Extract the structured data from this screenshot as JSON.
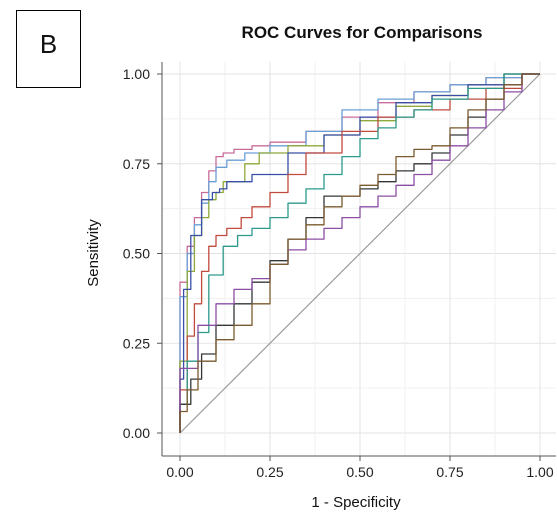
{
  "panel_label": "B",
  "chart_data": {
    "type": "line",
    "title": "ROC Curves for Comparisons",
    "xlabel": "1 - Specificity",
    "ylabel": "Sensitivity",
    "xlim": [
      0,
      1
    ],
    "ylim": [
      0,
      1
    ],
    "x_ticks": [
      "0.00",
      "0.25",
      "0.50",
      "0.75",
      "1.00"
    ],
    "y_ticks": [
      "0.00",
      "0.25",
      "0.50",
      "0.75",
      "1.00"
    ],
    "grid": true,
    "legend": "none",
    "reference_line": {
      "x": [
        0,
        1
      ],
      "y": [
        0,
        1
      ],
      "color": "#9a9a9a"
    },
    "series": [
      {
        "color": "#c86d9a",
        "x": [
          0,
          0.02,
          0.04,
          0.06,
          0.08,
          0.1,
          0.12,
          0.15,
          0.2,
          0.25,
          0.35,
          0.45,
          0.55,
          0.65,
          0.75,
          0.85,
          0.95,
          1.0
        ],
        "y": [
          0,
          0.42,
          0.52,
          0.6,
          0.67,
          0.73,
          0.77,
          0.78,
          0.79,
          0.8,
          0.81,
          0.84,
          0.88,
          0.92,
          0.95,
          0.97,
          0.99,
          1.0
        ]
      },
      {
        "color": "#6a9fd6",
        "x": [
          0,
          0.02,
          0.04,
          0.06,
          0.08,
          0.1,
          0.13,
          0.18,
          0.25,
          0.35,
          0.45,
          0.55,
          0.65,
          0.75,
          0.85,
          0.95,
          1.0
        ],
        "y": [
          0,
          0.38,
          0.5,
          0.58,
          0.64,
          0.7,
          0.74,
          0.76,
          0.78,
          0.8,
          0.84,
          0.9,
          0.93,
          0.95,
          0.97,
          0.99,
          1.0
        ]
      },
      {
        "color": "#8ea83a",
        "x": [
          0,
          0.02,
          0.04,
          0.06,
          0.08,
          0.1,
          0.12,
          0.18,
          0.22,
          0.3,
          0.4,
          0.5,
          0.6,
          0.7,
          0.8,
          0.9,
          1.0
        ],
        "y": [
          0,
          0.2,
          0.45,
          0.55,
          0.6,
          0.65,
          0.67,
          0.7,
          0.75,
          0.78,
          0.8,
          0.83,
          0.87,
          0.91,
          0.94,
          0.97,
          1.0
        ]
      },
      {
        "color": "#3a4fa8",
        "x": [
          0,
          0.01,
          0.03,
          0.06,
          0.09,
          0.11,
          0.13,
          0.2,
          0.3,
          0.4,
          0.5,
          0.6,
          0.7,
          0.8,
          0.9,
          1.0
        ],
        "y": [
          0,
          0.15,
          0.4,
          0.55,
          0.65,
          0.67,
          0.68,
          0.7,
          0.72,
          0.78,
          0.83,
          0.88,
          0.92,
          0.94,
          0.97,
          1.0
        ]
      },
      {
        "color": "#c14a3e",
        "x": [
          0,
          0.02,
          0.04,
          0.06,
          0.08,
          0.1,
          0.13,
          0.17,
          0.2,
          0.25,
          0.3,
          0.35,
          0.45,
          0.55,
          0.65,
          0.75,
          0.85,
          0.95,
          1.0
        ],
        "y": [
          0,
          0.12,
          0.27,
          0.36,
          0.45,
          0.52,
          0.55,
          0.57,
          0.6,
          0.63,
          0.67,
          0.72,
          0.78,
          0.84,
          0.88,
          0.9,
          0.93,
          0.96,
          1.0
        ]
      },
      {
        "color": "#2b9a8a",
        "x": [
          0,
          0.02,
          0.05,
          0.08,
          0.12,
          0.16,
          0.2,
          0.25,
          0.3,
          0.35,
          0.4,
          0.45,
          0.5,
          0.55,
          0.6,
          0.65,
          0.7,
          0.8,
          0.9,
          1.0
        ],
        "y": [
          0,
          0.08,
          0.2,
          0.28,
          0.44,
          0.52,
          0.55,
          0.57,
          0.6,
          0.64,
          0.68,
          0.72,
          0.77,
          0.82,
          0.85,
          0.88,
          0.9,
          0.93,
          0.96,
          1.0
        ]
      },
      {
        "color": "#34373a",
        "x": [
          0,
          0.03,
          0.06,
          0.1,
          0.15,
          0.2,
          0.25,
          0.3,
          0.35,
          0.4,
          0.45,
          0.5,
          0.55,
          0.6,
          0.65,
          0.7,
          0.75,
          0.8,
          0.85,
          0.9,
          0.95,
          1.0
        ],
        "y": [
          0,
          0.08,
          0.15,
          0.22,
          0.3,
          0.36,
          0.42,
          0.48,
          0.54,
          0.6,
          0.66,
          0.66,
          0.68,
          0.7,
          0.73,
          0.75,
          0.78,
          0.83,
          0.88,
          0.93,
          0.97,
          1.0
        ]
      },
      {
        "color": "#8b4fa6",
        "x": [
          0,
          0.05,
          0.1,
          0.15,
          0.2,
          0.25,
          0.3,
          0.35,
          0.4,
          0.45,
          0.5,
          0.55,
          0.6,
          0.65,
          0.7,
          0.75,
          0.8,
          0.85,
          0.9,
          0.95,
          1.0
        ],
        "y": [
          0,
          0.18,
          0.3,
          0.36,
          0.4,
          0.43,
          0.47,
          0.51,
          0.54,
          0.57,
          0.6,
          0.63,
          0.66,
          0.69,
          0.72,
          0.76,
          0.8,
          0.85,
          0.9,
          0.95,
          1.0
        ]
      },
      {
        "color": "#7a5a2e",
        "x": [
          0,
          0.02,
          0.05,
          0.1,
          0.15,
          0.2,
          0.25,
          0.3,
          0.35,
          0.4,
          0.45,
          0.5,
          0.55,
          0.6,
          0.65,
          0.7,
          0.75,
          0.8,
          0.85,
          0.9,
          0.95,
          1.0
        ],
        "y": [
          0,
          0.06,
          0.12,
          0.2,
          0.26,
          0.3,
          0.36,
          0.47,
          0.54,
          0.58,
          0.63,
          0.66,
          0.69,
          0.72,
          0.77,
          0.79,
          0.8,
          0.85,
          0.9,
          0.93,
          0.97,
          1.0
        ]
      }
    ]
  }
}
